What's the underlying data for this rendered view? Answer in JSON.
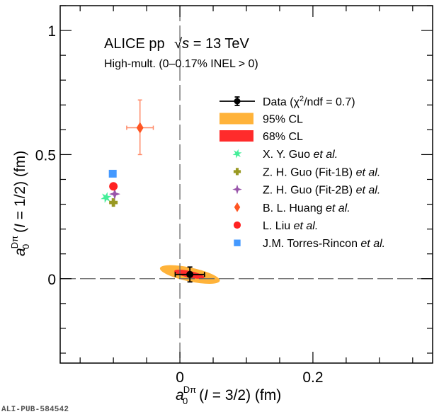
{
  "watermark": "ALI-PUB-584542",
  "chart_data": {
    "type": "scatter",
    "title_lines": [
      "ALICE pp √s = 13 TeV",
      "High-mult. (0–0.17% INEL > 0)"
    ],
    "title": {
      "experiment": "ALICE pp",
      "sqrt": "√",
      "s": "s",
      "energy": " = 13 TeV",
      "subtitle": "High-mult. (0–0.17% INEL > 0)"
    },
    "xlabel": {
      "a": "a",
      "sup": "Dπ",
      "sub": "0",
      "rest_open": " (",
      "I": "I",
      "rest": " = 3/2) (fm)"
    },
    "ylabel": {
      "a": "a",
      "sup": "Dπ",
      "sub": "0",
      "rest_open": " (",
      "I": "I",
      "rest": " = 1/2) (fm)"
    },
    "xlabel_text": "a0^Dπ (I = 3/2) (fm)",
    "ylabel_text": "a0^Dπ (I = 1/2) (fm)",
    "xlim": [
      -0.18,
      0.38
    ],
    "ylim": [
      -0.34,
      1.1
    ],
    "x_major_ticks": [
      0,
      0.2
    ],
    "x_tick_labels": [
      "0",
      "0.2"
    ],
    "x_minor_step": 0.05,
    "y_major_ticks": [
      0,
      0.5,
      1
    ],
    "y_tick_labels": [
      "0",
      "0.5",
      "1"
    ],
    "y_minor_step": 0.1,
    "grid": false,
    "reference_lines": {
      "x": 0,
      "y": 0,
      "style": "dashed"
    },
    "legend_position": "top-right",
    "data": {
      "name": "Data (χ²/ndf = 0.7)",
      "label_prefix": "Data (χ",
      "label_sup": "2",
      "label_suffix": "/ndf = 0.7)",
      "x": 0.015,
      "y": 0.017,
      "xerr": 0.022,
      "yerr": 0.03,
      "color": "#000000"
    },
    "contours": [
      {
        "name": "95% CL",
        "center": [
          0.015,
          0.017
        ],
        "semi_axes": [
          0.046,
          0.05
        ],
        "rotation_deg": -12,
        "color": "#FFB33A"
      },
      {
        "name": "68% CL",
        "center": [
          0.014,
          0.018
        ],
        "semi_axes": [
          0.023,
          0.024
        ],
        "rotation_deg": -12,
        "color": "#FF2B2B"
      }
    ],
    "series": [
      {
        "name": "X. Y. Guo",
        "etal": "et al.",
        "marker": "star6",
        "color": "#44EE99",
        "x": -0.111,
        "y": 0.327
      },
      {
        "name": "Z. H. Guo (Fit-1B)",
        "etal": "et al.",
        "marker": "cross",
        "color": "#999922",
        "x": -0.1,
        "y": 0.307
      },
      {
        "name": "Z. H. Guo (Fit-2B)",
        "etal": "et al.",
        "marker": "star4",
        "color": "#9955AA",
        "x": -0.098,
        "y": 0.341
      },
      {
        "name": "B. L. Huang",
        "etal": "et al.",
        "marker": "diamond",
        "color": "#FF5522",
        "x": -0.06,
        "y": 0.608,
        "xerr": 0.02,
        "yerr_up": 0.112,
        "yerr_down": 0.108
      },
      {
        "name": "L. Liu",
        "etal": "et al.",
        "marker": "circle",
        "color": "#FF2222",
        "x": -0.1,
        "y": 0.372
      },
      {
        "name": "J.M. Torres-Rincon",
        "etal": "et al.",
        "marker": "square",
        "color": "#4499FF",
        "x": -0.101,
        "y": 0.423
      }
    ]
  }
}
